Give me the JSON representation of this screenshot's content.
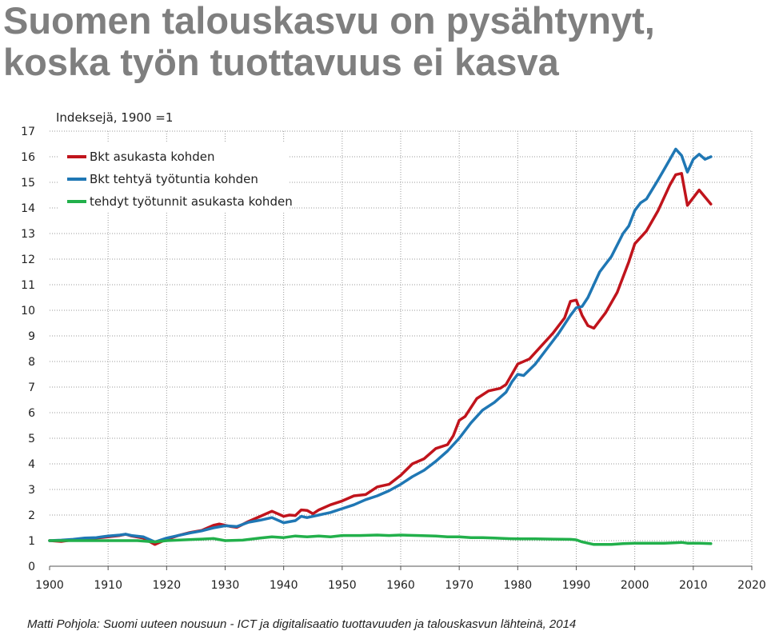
{
  "title": {
    "line1": "Suomen talouskasvu on pysähtynyt,",
    "line2": "koska työn tuottavuus ei kasva"
  },
  "footer": "Matti Pohjola: Suomi uuteen nousuun - ICT ja digitalisaatio tuottavuuden ja talouskasvun lähteinä, 2014",
  "chart_data": {
    "type": "line",
    "subtitle": "Indeksejä, 1900 =1",
    "xlim": [
      1900,
      2020
    ],
    "ylim": [
      0,
      17
    ],
    "x_ticks": [
      1900,
      1910,
      1920,
      1930,
      1940,
      1950,
      1960,
      1970,
      1980,
      1990,
      2000,
      2010,
      2020
    ],
    "y_ticks": [
      0,
      1,
      2,
      3,
      4,
      5,
      6,
      7,
      8,
      9,
      10,
      11,
      12,
      13,
      14,
      15,
      16,
      17
    ],
    "grid": true,
    "legend_position": "top-left",
    "series": [
      {
        "name": "Bkt asukasta kohden",
        "color": "#c0141c",
        "points": [
          [
            1900,
            1.0
          ],
          [
            1902,
            0.97
          ],
          [
            1904,
            1.03
          ],
          [
            1906,
            1.06
          ],
          [
            1908,
            1.1
          ],
          [
            1910,
            1.15
          ],
          [
            1912,
            1.2
          ],
          [
            1913,
            1.25
          ],
          [
            1914,
            1.18
          ],
          [
            1916,
            1.1
          ],
          [
            1918,
            0.85
          ],
          [
            1920,
            1.05
          ],
          [
            1922,
            1.2
          ],
          [
            1924,
            1.32
          ],
          [
            1926,
            1.4
          ],
          [
            1928,
            1.6
          ],
          [
            1929,
            1.65
          ],
          [
            1931,
            1.55
          ],
          [
            1932,
            1.52
          ],
          [
            1934,
            1.75
          ],
          [
            1936,
            1.95
          ],
          [
            1938,
            2.15
          ],
          [
            1940,
            1.95
          ],
          [
            1941,
            2.0
          ],
          [
            1942,
            1.98
          ],
          [
            1943,
            2.2
          ],
          [
            1944,
            2.18
          ],
          [
            1945,
            2.05
          ],
          [
            1946,
            2.2
          ],
          [
            1948,
            2.4
          ],
          [
            1950,
            2.55
          ],
          [
            1952,
            2.75
          ],
          [
            1954,
            2.8
          ],
          [
            1956,
            3.1
          ],
          [
            1958,
            3.2
          ],
          [
            1960,
            3.55
          ],
          [
            1962,
            4.0
          ],
          [
            1964,
            4.2
          ],
          [
            1966,
            4.6
          ],
          [
            1968,
            4.75
          ],
          [
            1969,
            5.1
          ],
          [
            1970,
            5.7
          ],
          [
            1971,
            5.85
          ],
          [
            1973,
            6.55
          ],
          [
            1975,
            6.85
          ],
          [
            1977,
            6.95
          ],
          [
            1978,
            7.1
          ],
          [
            1980,
            7.9
          ],
          [
            1982,
            8.1
          ],
          [
            1984,
            8.6
          ],
          [
            1986,
            9.1
          ],
          [
            1988,
            9.7
          ],
          [
            1989,
            10.35
          ],
          [
            1990,
            10.4
          ],
          [
            1991,
            9.8
          ],
          [
            1992,
            9.4
          ],
          [
            1993,
            9.3
          ],
          [
            1995,
            9.9
          ],
          [
            1997,
            10.7
          ],
          [
            1999,
            11.9
          ],
          [
            2000,
            12.6
          ],
          [
            2002,
            13.1
          ],
          [
            2004,
            13.9
          ],
          [
            2006,
            14.9
          ],
          [
            2007,
            15.3
          ],
          [
            2008,
            15.35
          ],
          [
            2009,
            14.1
          ],
          [
            2011,
            14.7
          ],
          [
            2013,
            14.15
          ]
        ]
      },
      {
        "name": "Bkt tehtyä työtuntia kohden",
        "color": "#1f77b4",
        "points": [
          [
            1900,
            1.0
          ],
          [
            1902,
            1.02
          ],
          [
            1904,
            1.05
          ],
          [
            1906,
            1.1
          ],
          [
            1908,
            1.12
          ],
          [
            1910,
            1.18
          ],
          [
            1912,
            1.22
          ],
          [
            1913,
            1.25
          ],
          [
            1914,
            1.2
          ],
          [
            1916,
            1.15
          ],
          [
            1918,
            0.95
          ],
          [
            1920,
            1.1
          ],
          [
            1922,
            1.2
          ],
          [
            1924,
            1.3
          ],
          [
            1926,
            1.38
          ],
          [
            1928,
            1.5
          ],
          [
            1930,
            1.58
          ],
          [
            1932,
            1.55
          ],
          [
            1934,
            1.72
          ],
          [
            1936,
            1.8
          ],
          [
            1938,
            1.9
          ],
          [
            1940,
            1.7
          ],
          [
            1942,
            1.78
          ],
          [
            1943,
            1.95
          ],
          [
            1944,
            1.9
          ],
          [
            1946,
            2.0
          ],
          [
            1948,
            2.1
          ],
          [
            1950,
            2.25
          ],
          [
            1952,
            2.4
          ],
          [
            1954,
            2.6
          ],
          [
            1956,
            2.75
          ],
          [
            1958,
            2.95
          ],
          [
            1960,
            3.2
          ],
          [
            1962,
            3.5
          ],
          [
            1964,
            3.75
          ],
          [
            1966,
            4.1
          ],
          [
            1968,
            4.5
          ],
          [
            1970,
            5.0
          ],
          [
            1972,
            5.6
          ],
          [
            1974,
            6.1
          ],
          [
            1976,
            6.4
          ],
          [
            1978,
            6.8
          ],
          [
            1979,
            7.2
          ],
          [
            1980,
            7.5
          ],
          [
            1981,
            7.45
          ],
          [
            1983,
            7.9
          ],
          [
            1985,
            8.5
          ],
          [
            1987,
            9.1
          ],
          [
            1989,
            9.8
          ],
          [
            1990,
            10.1
          ],
          [
            1991,
            10.15
          ],
          [
            1992,
            10.5
          ],
          [
            1994,
            11.5
          ],
          [
            1996,
            12.1
          ],
          [
            1998,
            13.0
          ],
          [
            1999,
            13.3
          ],
          [
            2000,
            13.9
          ],
          [
            2001,
            14.2
          ],
          [
            2002,
            14.35
          ],
          [
            2004,
            15.1
          ],
          [
            2005,
            15.5
          ],
          [
            2006,
            15.9
          ],
          [
            2007,
            16.3
          ],
          [
            2008,
            16.05
          ],
          [
            2009,
            15.4
          ],
          [
            2010,
            15.9
          ],
          [
            2011,
            16.1
          ],
          [
            2012,
            15.9
          ],
          [
            2013,
            16.0
          ]
        ]
      },
      {
        "name": "tehdyt työtunnit asukasta kohden",
        "color": "#22b04b",
        "points": [
          [
            1900,
            1.0
          ],
          [
            1905,
            1.0
          ],
          [
            1910,
            1.0
          ],
          [
            1915,
            1.0
          ],
          [
            1918,
            0.95
          ],
          [
            1920,
            1.0
          ],
          [
            1925,
            1.05
          ],
          [
            1928,
            1.08
          ],
          [
            1930,
            1.0
          ],
          [
            1933,
            1.02
          ],
          [
            1936,
            1.1
          ],
          [
            1938,
            1.15
          ],
          [
            1940,
            1.12
          ],
          [
            1942,
            1.18
          ],
          [
            1944,
            1.15
          ],
          [
            1946,
            1.18
          ],
          [
            1948,
            1.15
          ],
          [
            1950,
            1.2
          ],
          [
            1953,
            1.2
          ],
          [
            1956,
            1.22
          ],
          [
            1958,
            1.2
          ],
          [
            1960,
            1.22
          ],
          [
            1963,
            1.2
          ],
          [
            1966,
            1.18
          ],
          [
            1968,
            1.15
          ],
          [
            1970,
            1.15
          ],
          [
            1972,
            1.12
          ],
          [
            1974,
            1.12
          ],
          [
            1976,
            1.1
          ],
          [
            1978,
            1.08
          ],
          [
            1980,
            1.07
          ],
          [
            1983,
            1.07
          ],
          [
            1986,
            1.06
          ],
          [
            1989,
            1.05
          ],
          [
            1990,
            1.03
          ],
          [
            1991,
            0.95
          ],
          [
            1993,
            0.85
          ],
          [
            1996,
            0.85
          ],
          [
            1998,
            0.88
          ],
          [
            2000,
            0.9
          ],
          [
            2003,
            0.9
          ],
          [
            2005,
            0.9
          ],
          [
            2007,
            0.92
          ],
          [
            2008,
            0.93
          ],
          [
            2009,
            0.9
          ],
          [
            2011,
            0.9
          ],
          [
            2013,
            0.88
          ]
        ]
      }
    ]
  }
}
